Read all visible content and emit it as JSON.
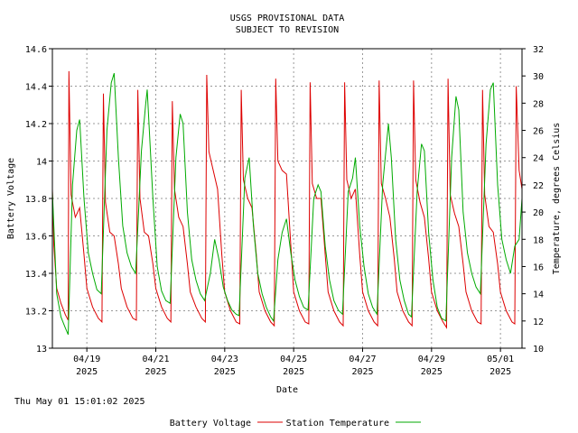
{
  "chart_data": {
    "type": "line",
    "title": "USGS PROVISIONAL DATA",
    "subtitle": "SUBJECT TO REVISION",
    "xlabel": "Date",
    "ylabel": "Battery Voltage",
    "y2label": "Temperature, degrees Celsius",
    "xlim": [
      "2025-04-18T00:00",
      "2025-05-01T15:00"
    ],
    "ylim": [
      13,
      14.6
    ],
    "y2lim": [
      10,
      32
    ],
    "x_ticks": [
      {
        "date": "2025-04-19T00:00",
        "label": "04/19",
        "year": "2025"
      },
      {
        "date": "2025-04-21T00:00",
        "label": "04/21",
        "year": "2025"
      },
      {
        "date": "2025-04-23T00:00",
        "label": "04/23",
        "year": "2025"
      },
      {
        "date": "2025-04-25T00:00",
        "label": "04/25",
        "year": "2025"
      },
      {
        "date": "2025-04-27T00:00",
        "label": "04/27",
        "year": "2025"
      },
      {
        "date": "2025-04-29T00:00",
        "label": "04/29",
        "year": "2025"
      },
      {
        "date": "2025-05-01T00:00",
        "label": "05/01",
        "year": "2025"
      }
    ],
    "y_ticks": [
      "13",
      "13.2",
      "13.4",
      "13.6",
      "13.8",
      "14",
      "14.2",
      "14.4",
      "14.6"
    ],
    "y2_ticks": [
      "10",
      "12",
      "14",
      "16",
      "18",
      "20",
      "22",
      "24",
      "26",
      "28",
      "30",
      "32"
    ],
    "grid": true,
    "legend_position": "bottom",
    "series": [
      {
        "name": "Battery Voltage",
        "axis": "left",
        "color": "#dd0000",
        "points": [
          [
            "2025-04-18T00:00",
            13.85
          ],
          [
            "2025-04-18T01:00",
            13.55
          ],
          [
            "2025-04-18T03:00",
            13.32
          ],
          [
            "2025-04-18T06:00",
            13.24
          ],
          [
            "2025-04-18T09:00",
            13.18
          ],
          [
            "2025-04-18T11:00",
            13.15
          ],
          [
            "2025-04-18T11:30",
            14.48
          ],
          [
            "2025-04-18T13:00",
            13.82
          ],
          [
            "2025-04-18T16:00",
            13.7
          ],
          [
            "2025-04-18T19:00",
            13.75
          ],
          [
            "2025-04-18T22:00",
            13.5
          ],
          [
            "2025-04-19T00:00",
            13.32
          ],
          [
            "2025-04-19T04:00",
            13.22
          ],
          [
            "2025-04-19T08:00",
            13.16
          ],
          [
            "2025-04-19T10:30",
            13.14
          ],
          [
            "2025-04-19T11:30",
            14.36
          ],
          [
            "2025-04-19T13:00",
            13.78
          ],
          [
            "2025-04-19T16:00",
            13.62
          ],
          [
            "2025-04-19T19:00",
            13.6
          ],
          [
            "2025-04-19T22:00",
            13.45
          ],
          [
            "2025-04-20T00:00",
            13.32
          ],
          [
            "2025-04-20T04:00",
            13.22
          ],
          [
            "2025-04-20T08:00",
            13.16
          ],
          [
            "2025-04-20T10:30",
            13.15
          ],
          [
            "2025-04-20T11:30",
            14.38
          ],
          [
            "2025-04-20T13:00",
            13.8
          ],
          [
            "2025-04-20T16:00",
            13.62
          ],
          [
            "2025-04-20T19:00",
            13.6
          ],
          [
            "2025-04-20T22:00",
            13.45
          ],
          [
            "2025-04-21T00:00",
            13.32
          ],
          [
            "2025-04-21T04:00",
            13.22
          ],
          [
            "2025-04-21T08:00",
            13.16
          ],
          [
            "2025-04-21T10:30",
            13.14
          ],
          [
            "2025-04-21T11:30",
            14.32
          ],
          [
            "2025-04-21T13:00",
            13.85
          ],
          [
            "2025-04-21T16:00",
            13.7
          ],
          [
            "2025-04-21T19:00",
            13.65
          ],
          [
            "2025-04-21T22:00",
            13.45
          ],
          [
            "2025-04-22T00:00",
            13.3
          ],
          [
            "2025-04-22T04:00",
            13.22
          ],
          [
            "2025-04-22T08:00",
            13.16
          ],
          [
            "2025-04-22T10:30",
            13.14
          ],
          [
            "2025-04-22T11:30",
            14.46
          ],
          [
            "2025-04-22T13:00",
            14.05
          ],
          [
            "2025-04-22T16:00",
            13.95
          ],
          [
            "2025-04-22T19:00",
            13.85
          ],
          [
            "2025-04-22T22:00",
            13.5
          ],
          [
            "2025-04-23T00:00",
            13.3
          ],
          [
            "2025-04-23T04:00",
            13.2
          ],
          [
            "2025-04-23T08:00",
            13.14
          ],
          [
            "2025-04-23T10:30",
            13.13
          ],
          [
            "2025-04-23T11:30",
            14.38
          ],
          [
            "2025-04-23T13:00",
            13.9
          ],
          [
            "2025-04-23T16:00",
            13.8
          ],
          [
            "2025-04-23T19:00",
            13.75
          ],
          [
            "2025-04-23T22:00",
            13.5
          ],
          [
            "2025-04-24T00:00",
            13.3
          ],
          [
            "2025-04-24T04:00",
            13.2
          ],
          [
            "2025-04-24T08:00",
            13.14
          ],
          [
            "2025-04-24T10:30",
            13.12
          ],
          [
            "2025-04-24T11:30",
            14.44
          ],
          [
            "2025-04-24T13:00",
            14.0
          ],
          [
            "2025-04-24T16:00",
            13.95
          ],
          [
            "2025-04-24T19:00",
            13.93
          ],
          [
            "2025-04-24T22:00",
            13.55
          ],
          [
            "2025-04-25T00:00",
            13.3
          ],
          [
            "2025-04-25T04:00",
            13.2
          ],
          [
            "2025-04-25T08:00",
            13.14
          ],
          [
            "2025-04-25T10:30",
            13.13
          ],
          [
            "2025-04-25T11:30",
            14.42
          ],
          [
            "2025-04-25T13:00",
            13.88
          ],
          [
            "2025-04-25T16:00",
            13.8
          ],
          [
            "2025-04-25T19:00",
            13.8
          ],
          [
            "2025-04-25T22:00",
            13.5
          ],
          [
            "2025-04-26T00:00",
            13.3
          ],
          [
            "2025-04-26T04:00",
            13.2
          ],
          [
            "2025-04-26T08:00",
            13.14
          ],
          [
            "2025-04-26T10:30",
            13.12
          ],
          [
            "2025-04-26T11:30",
            14.42
          ],
          [
            "2025-04-26T13:00",
            13.9
          ],
          [
            "2025-04-26T16:00",
            13.8
          ],
          [
            "2025-04-26T19:00",
            13.85
          ],
          [
            "2025-04-26T22:00",
            13.5
          ],
          [
            "2025-04-27T00:00",
            13.3
          ],
          [
            "2025-04-27T04:00",
            13.2
          ],
          [
            "2025-04-27T08:00",
            13.14
          ],
          [
            "2025-04-27T10:30",
            13.12
          ],
          [
            "2025-04-27T11:30",
            14.43
          ],
          [
            "2025-04-27T13:00",
            13.88
          ],
          [
            "2025-04-27T16:00",
            13.8
          ],
          [
            "2025-04-27T19:00",
            13.7
          ],
          [
            "2025-04-27T22:00",
            13.48
          ],
          [
            "2025-04-28T00:00",
            13.3
          ],
          [
            "2025-04-28T04:00",
            13.2
          ],
          [
            "2025-04-28T08:00",
            13.14
          ],
          [
            "2025-04-28T10:30",
            13.12
          ],
          [
            "2025-04-28T11:30",
            14.43
          ],
          [
            "2025-04-28T13:00",
            13.9
          ],
          [
            "2025-04-28T16:00",
            13.78
          ],
          [
            "2025-04-28T19:00",
            13.7
          ],
          [
            "2025-04-28T22:00",
            13.48
          ],
          [
            "2025-04-29T00:00",
            13.3
          ],
          [
            "2025-04-29T04:00",
            13.2
          ],
          [
            "2025-04-29T08:00",
            13.14
          ],
          [
            "2025-04-29T10:30",
            13.11
          ],
          [
            "2025-04-29T11:30",
            14.44
          ],
          [
            "2025-04-29T13:00",
            13.82
          ],
          [
            "2025-04-29T16:00",
            13.72
          ],
          [
            "2025-04-29T19:00",
            13.65
          ],
          [
            "2025-04-29T22:00",
            13.45
          ],
          [
            "2025-04-30T00:00",
            13.3
          ],
          [
            "2025-04-30T04:00",
            13.2
          ],
          [
            "2025-04-30T08:00",
            13.14
          ],
          [
            "2025-04-30T10:30",
            13.13
          ],
          [
            "2025-04-30T11:30",
            14.38
          ],
          [
            "2025-04-30T13:00",
            13.82
          ],
          [
            "2025-04-30T16:00",
            13.65
          ],
          [
            "2025-04-30T19:00",
            13.62
          ],
          [
            "2025-04-30T22:00",
            13.45
          ],
          [
            "2025-05-01T00:00",
            13.3
          ],
          [
            "2025-05-01T04:00",
            13.2
          ],
          [
            "2025-05-01T08:00",
            13.14
          ],
          [
            "2025-05-01T10:00",
            13.13
          ],
          [
            "2025-05-01T11:00",
            14.4
          ],
          [
            "2025-05-01T13:00",
            13.95
          ],
          [
            "2025-05-01T15:00",
            13.85
          ]
        ]
      },
      {
        "name": "Station Temperature",
        "axis": "right",
        "color": "#00aa00",
        "points": [
          [
            "2025-04-18T00:00",
            21.5
          ],
          [
            "2025-04-18T03:00",
            14.0
          ],
          [
            "2025-04-18T06:00",
            12.3
          ],
          [
            "2025-04-18T09:00",
            11.5
          ],
          [
            "2025-04-18T11:00",
            11.0
          ],
          [
            "2025-04-18T14:00",
            22.0
          ],
          [
            "2025-04-18T17:00",
            26.0
          ],
          [
            "2025-04-18T19:00",
            26.8
          ],
          [
            "2025-04-18T22:00",
            21.0
          ],
          [
            "2025-04-19T01:00",
            17.0
          ],
          [
            "2025-04-19T04:00",
            15.5
          ],
          [
            "2025-04-19T07:00",
            14.3
          ],
          [
            "2025-04-19T10:00",
            14.0
          ],
          [
            "2025-04-19T14:00",
            26.0
          ],
          [
            "2025-04-19T17:00",
            29.5
          ],
          [
            "2025-04-19T19:00",
            30.2
          ],
          [
            "2025-04-19T22:00",
            24.0
          ],
          [
            "2025-04-20T01:00",
            19.0
          ],
          [
            "2025-04-20T04:00",
            17.0
          ],
          [
            "2025-04-20T07:00",
            16.0
          ],
          [
            "2025-04-20T10:00",
            15.5
          ],
          [
            "2025-04-20T14:00",
            24.5
          ],
          [
            "2025-04-20T17:00",
            28.0
          ],
          [
            "2025-04-20T18:00",
            29.0
          ],
          [
            "2025-04-20T22:00",
            21.0
          ],
          [
            "2025-04-21T01:00",
            16.0
          ],
          [
            "2025-04-21T04:00",
            14.2
          ],
          [
            "2025-04-21T07:00",
            13.5
          ],
          [
            "2025-04-21T10:00",
            13.3
          ],
          [
            "2025-04-21T14:00",
            24.0
          ],
          [
            "2025-04-21T17:00",
            27.2
          ],
          [
            "2025-04-21T19:00",
            26.5
          ],
          [
            "2025-04-21T22:00",
            20.0
          ],
          [
            "2025-04-22T01:00",
            16.5
          ],
          [
            "2025-04-22T04:00",
            15.0
          ],
          [
            "2025-04-22T07:00",
            14.0
          ],
          [
            "2025-04-22T10:00",
            13.5
          ],
          [
            "2025-04-22T14:00",
            15.5
          ],
          [
            "2025-04-22T17:00",
            18.0
          ],
          [
            "2025-04-22T20:00",
            16.5
          ],
          [
            "2025-04-22T23:00",
            14.5
          ],
          [
            "2025-04-23T02:00",
            13.5
          ],
          [
            "2025-04-23T05:00",
            12.8
          ],
          [
            "2025-04-23T08:00",
            12.5
          ],
          [
            "2025-04-23T10:00",
            12.4
          ],
          [
            "2025-04-23T14:00",
            22.5
          ],
          [
            "2025-04-23T17:00",
            24.0
          ],
          [
            "2025-04-23T20:00",
            19.0
          ],
          [
            "2025-04-23T23:00",
            15.5
          ],
          [
            "2025-04-24T02:00",
            14.0
          ],
          [
            "2025-04-24T05:00",
            13.0
          ],
          [
            "2025-04-24T08:00",
            12.3
          ],
          [
            "2025-04-24T10:00",
            12.0
          ],
          [
            "2025-04-24T13:00",
            16.5
          ],
          [
            "2025-04-24T16:00",
            18.5
          ],
          [
            "2025-04-24T19:00",
            19.5
          ],
          [
            "2025-04-24T22:00",
            17.0
          ],
          [
            "2025-04-25T01:00",
            15.0
          ],
          [
            "2025-04-25T04:00",
            13.8
          ],
          [
            "2025-04-25T07:00",
            13.0
          ],
          [
            "2025-04-25T10:00",
            12.8
          ],
          [
            "2025-04-25T14:00",
            21.0
          ],
          [
            "2025-04-25T17:00",
            22.0
          ],
          [
            "2025-04-25T19:00",
            21.5
          ],
          [
            "2025-04-25T22:00",
            17.5
          ],
          [
            "2025-04-26T01:00",
            15.0
          ],
          [
            "2025-04-26T04:00",
            13.5
          ],
          [
            "2025-04-26T07:00",
            12.8
          ],
          [
            "2025-04-26T10:00",
            12.5
          ],
          [
            "2025-04-26T14:00",
            21.5
          ],
          [
            "2025-04-26T17:00",
            22.5
          ],
          [
            "2025-04-26T19:00",
            24.0
          ],
          [
            "2025-04-26T22:00",
            19.0
          ],
          [
            "2025-04-27T01:00",
            16.0
          ],
          [
            "2025-04-27T04:00",
            14.0
          ],
          [
            "2025-04-27T07:00",
            13.0
          ],
          [
            "2025-04-27T10:00",
            12.5
          ],
          [
            "2025-04-27T14:00",
            22.0
          ],
          [
            "2025-04-27T18:00",
            26.5
          ],
          [
            "2025-04-27T20:00",
            24.0
          ],
          [
            "2025-04-27T23:00",
            18.0
          ],
          [
            "2025-04-28T02:00",
            15.0
          ],
          [
            "2025-04-28T05:00",
            13.5
          ],
          [
            "2025-04-28T08:00",
            12.5
          ],
          [
            "2025-04-28T10:00",
            12.3
          ],
          [
            "2025-04-28T14:00",
            21.5
          ],
          [
            "2025-04-28T17:00",
            25.0
          ],
          [
            "2025-04-28T19:00",
            24.5
          ],
          [
            "2025-04-28T22:00",
            18.5
          ],
          [
            "2025-04-29T01:00",
            15.0
          ],
          [
            "2025-04-29T04:00",
            13.0
          ],
          [
            "2025-04-29T07:00",
            12.2
          ],
          [
            "2025-04-29T10:00",
            12.0
          ],
          [
            "2025-04-29T14:00",
            24.0
          ],
          [
            "2025-04-29T17:00",
            28.5
          ],
          [
            "2025-04-29T19:00",
            27.5
          ],
          [
            "2025-04-29T22:00",
            20.0
          ],
          [
            "2025-04-30T01:00",
            17.0
          ],
          [
            "2025-04-30T04:00",
            15.5
          ],
          [
            "2025-04-30T07:00",
            14.5
          ],
          [
            "2025-04-30T10:00",
            14.0
          ],
          [
            "2025-04-30T14:00",
            25.0
          ],
          [
            "2025-04-30T17:00",
            29.0
          ],
          [
            "2025-04-30T19:00",
            29.5
          ],
          [
            "2025-04-30T22:00",
            22.0
          ],
          [
            "2025-05-01T01:00",
            18.0
          ],
          [
            "2025-05-01T04:00",
            16.5
          ],
          [
            "2025-05-01T07:00",
            15.5
          ],
          [
            "2025-05-01T10:00",
            17.5
          ],
          [
            "2025-05-01T13:00",
            18.0
          ],
          [
            "2025-05-01T15:00",
            21.0
          ]
        ]
      }
    ]
  },
  "timestamp": "Thu May 01 15:01:02 2025"
}
